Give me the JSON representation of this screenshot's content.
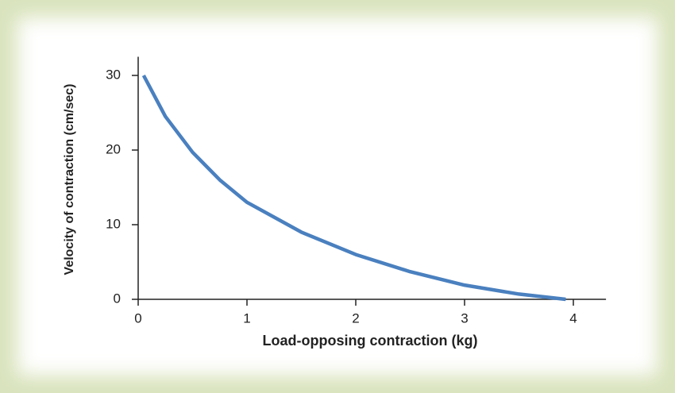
{
  "chart_data": {
    "type": "line",
    "xlabel": "Load-opposing contraction (kg)",
    "ylabel": "Velocity of contraction (cm/sec)",
    "x": [
      0.05,
      0.25,
      0.5,
      0.75,
      1,
      1.5,
      2,
      2.5,
      3,
      3.5,
      3.93
    ],
    "series": [
      {
        "color": "#4a80bf",
        "values": [
          30,
          24.5,
          19.7,
          16,
          13,
          9,
          6,
          3.7,
          1.9,
          0.7,
          0
        ]
      }
    ],
    "xlim": [
      0,
      4.3
    ],
    "xticks": [
      0,
      1,
      2,
      3,
      4
    ],
    "ylim": [
      0,
      32.5
    ],
    "yticks": [
      0,
      10,
      20,
      30
    ]
  }
}
